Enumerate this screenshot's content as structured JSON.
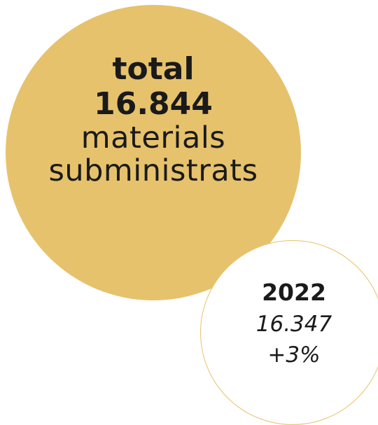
{
  "main": {
    "label": "total",
    "value": "16.844",
    "caption_line1": "materials",
    "caption_line2": "subministrats"
  },
  "comparison": {
    "year": "2022",
    "value": "16.347",
    "change": "+3%"
  },
  "colors": {
    "accent": "#e6c26c",
    "text": "#1a1a1a",
    "background": "#ffffff"
  }
}
